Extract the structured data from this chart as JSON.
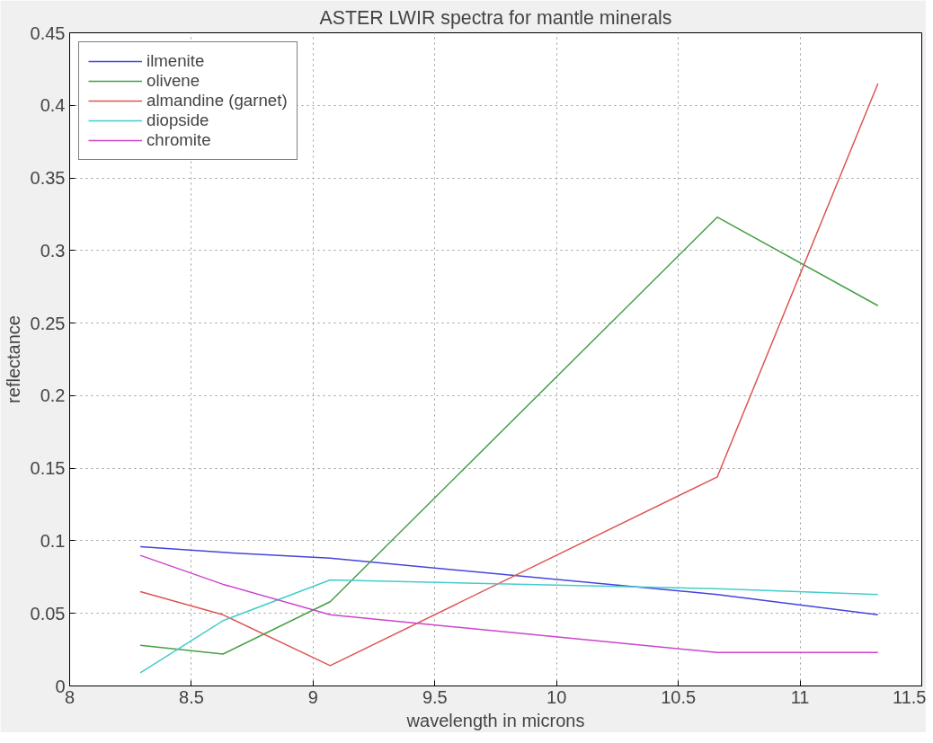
{
  "chart_data": {
    "type": "line",
    "title": "ASTER LWIR spectra for mantle minerals",
    "xlabel": "wavelength in microns",
    "ylabel": "reflectance",
    "x": [
      8.29,
      8.63,
      9.07,
      10.66,
      11.32
    ],
    "series": [
      {
        "name": "ilmenite",
        "color": "#4444dd",
        "values": [
          0.096,
          0.092,
          0.088,
          0.063,
          0.049
        ]
      },
      {
        "name": "olivene",
        "color": "#44a044",
        "values": [
          0.028,
          0.022,
          0.058,
          0.323,
          0.262
        ]
      },
      {
        "name": "almandine (garnet)",
        "color": "#dd5555",
        "values": [
          0.065,
          0.049,
          0.014,
          0.144,
          0.415
        ]
      },
      {
        "name": "diopside",
        "color": "#44cccc",
        "values": [
          0.009,
          0.045,
          0.073,
          0.067,
          0.063
        ]
      },
      {
        "name": "chromite",
        "color": "#cc44cc",
        "values": [
          0.09,
          0.07,
          0.049,
          0.023,
          0.023
        ]
      }
    ],
    "xlim": [
      8,
      11.5
    ],
    "xticks": [
      8,
      8.5,
      9,
      9.5,
      10,
      10.5,
      11,
      11.5
    ],
    "ylim": [
      0,
      0.45
    ],
    "yticks": [
      0,
      0.05,
      0.1,
      0.15,
      0.2,
      0.25,
      0.3,
      0.35,
      0.4,
      0.45
    ],
    "grid": true,
    "legend": "top left",
    "line_style": "solid",
    "marker": "none"
  }
}
